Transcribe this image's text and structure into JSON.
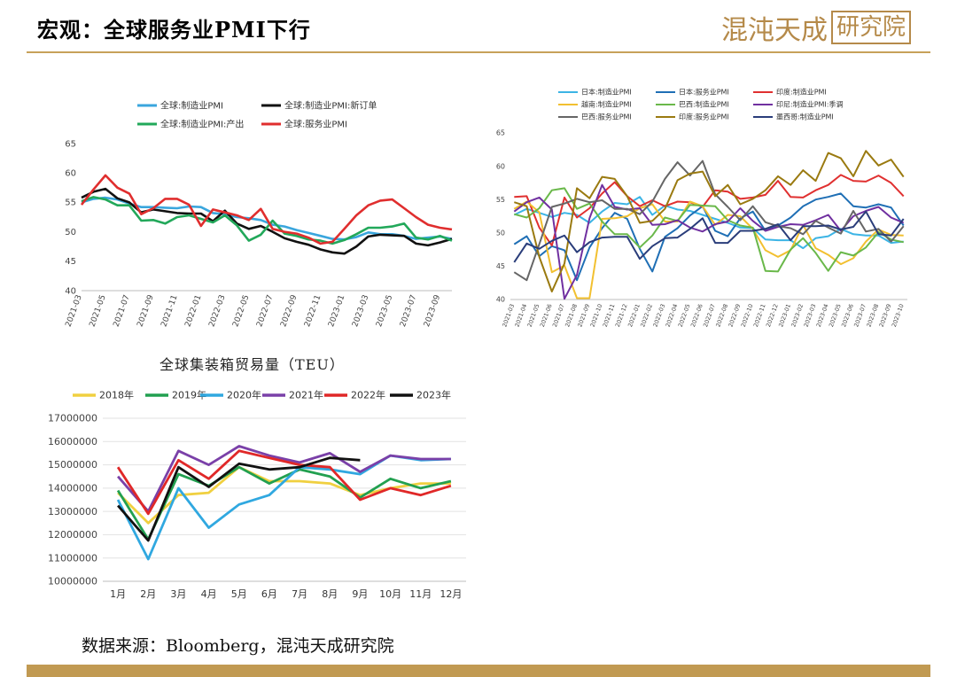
{
  "header": {
    "title": "宏观：全球服务业PMI下行",
    "brand_text": "混沌天成",
    "brand_box_text": "研究院"
  },
  "footer": {
    "source": "数据来源：Bloomberg，混沌天成研究院"
  },
  "chart_data": [
    {
      "type": "line",
      "title": "",
      "legend_position": "top",
      "ylim": [
        40,
        65
      ],
      "yticks": [
        40,
        45,
        50,
        55,
        60,
        65
      ],
      "x_labels": [
        "2021-03",
        "2021-05",
        "2021-07",
        "2021-09",
        "2021-11",
        "2022-01",
        "2022-03",
        "2022-05",
        "2022-07",
        "2022-09",
        "2022-11",
        "2023-01",
        "2023-03",
        "2023-05",
        "2023-07",
        "2023-09"
      ],
      "x_count": 32,
      "series": [
        {
          "name": "全球:制造业PMI",
          "color": "#3aa6dd",
          "values": [
            55.0,
            55.6,
            55.8,
            55.5,
            54.8,
            54.2,
            54.2,
            54.1,
            54.0,
            54.3,
            54.2,
            53.2,
            53.0,
            52.5,
            52.3,
            52.0,
            51.2,
            50.9,
            50.3,
            49.8,
            49.3,
            48.8,
            48.7,
            49.1,
            49.9,
            49.6,
            49.6,
            49.3,
            48.8,
            49.0,
            49.2,
            48.8
          ]
        },
        {
          "name": "全球:制造业PMI:新订单",
          "color": "#111111",
          "values": [
            55.8,
            56.8,
            57.3,
            55.7,
            55.0,
            53.3,
            53.8,
            53.5,
            53.2,
            53.1,
            53.1,
            51.8,
            53.6,
            51.4,
            50.5,
            51.0,
            50.0,
            48.9,
            48.3,
            47.8,
            47.0,
            46.5,
            46.3,
            47.5,
            49.2,
            49.5,
            49.4,
            49.3,
            48.0,
            47.7,
            48.2,
            48.8
          ]
        },
        {
          "name": "全球:制造业PMI:产出",
          "color": "#22a85a",
          "values": [
            55.2,
            55.9,
            55.5,
            54.5,
            54.5,
            51.9,
            52.0,
            51.4,
            52.5,
            52.8,
            52.2,
            51.6,
            52.8,
            51.1,
            48.5,
            49.5,
            51.9,
            49.7,
            49.3,
            48.7,
            48.5,
            48.0,
            48.6,
            49.6,
            50.7,
            50.7,
            50.9,
            51.4,
            49.0,
            48.7,
            49.3,
            48.5
          ]
        },
        {
          "name": "全球:服务业PMI",
          "color": "#e02e2e",
          "values": [
            54.6,
            57.2,
            59.6,
            57.5,
            56.5,
            53.0,
            54.0,
            55.6,
            55.6,
            54.6,
            51.0,
            53.8,
            53.3,
            52.8,
            52.0,
            53.9,
            50.5,
            50.0,
            49.7,
            49.0,
            48.0,
            48.3,
            50.5,
            52.8,
            54.5,
            55.3,
            55.5,
            54.0,
            52.5,
            51.2,
            50.7,
            50.4
          ]
        }
      ]
    },
    {
      "type": "line",
      "title": "",
      "legend_position": "top",
      "ylim": [
        40,
        65
      ],
      "yticks": [
        40,
        45,
        50,
        55,
        60,
        65
      ],
      "x_labels": [
        "2021-03",
        "2021-04",
        "2021-05",
        "2021-06",
        "2021-07",
        "2021-08",
        "2021-09",
        "2021-10",
        "2021-11",
        "2021-12",
        "2022-01",
        "2022-02",
        "2022-03",
        "2022-04",
        "2022-05",
        "2022-06",
        "2022-07",
        "2022-08",
        "2022-09",
        "2022-10",
        "2022-11",
        "2022-12",
        "2023-01",
        "2023-02",
        "2023-03",
        "2023-04",
        "2023-05",
        "2023-06",
        "2023-07",
        "2023-08",
        "2023-09",
        "2023-10"
      ],
      "series": [
        {
          "name": "日本:制造业PMI",
          "color": "#3cb4e5",
          "values": [
            52.7,
            53.6,
            53.0,
            52.4,
            53.0,
            52.7,
            51.5,
            53.2,
            54.5,
            54.3,
            55.4,
            52.7,
            54.1,
            53.5,
            53.3,
            52.7,
            52.1,
            51.5,
            50.8,
            50.7,
            49.0,
            48.9,
            48.9,
            47.7,
            49.2,
            49.5,
            50.6,
            49.8,
            49.6,
            49.6,
            48.5,
            48.7
          ]
        },
        {
          "name": "日本:服务业PMI",
          "color": "#1f6fb5",
          "values": [
            48.3,
            49.5,
            46.5,
            48.0,
            47.4,
            42.9,
            47.8,
            50.7,
            53.0,
            52.1,
            47.6,
            44.2,
            49.4,
            50.7,
            52.6,
            54.0,
            50.3,
            49.5,
            52.2,
            53.2,
            50.3,
            51.1,
            52.3,
            54.0,
            55.0,
            55.4,
            55.9,
            54.0,
            53.8,
            54.3,
            53.8,
            51.1
          ]
        },
        {
          "name": "印度:制造业PMI",
          "color": "#e03030",
          "values": [
            55.4,
            55.5,
            50.8,
            48.1,
            55.3,
            52.3,
            53.7,
            55.9,
            57.6,
            55.5,
            54.0,
            54.9,
            54.0,
            54.7,
            54.6,
            53.9,
            56.4,
            56.2,
            55.1,
            55.3,
            55.7,
            57.8,
            55.4,
            55.3,
            56.4,
            57.2,
            58.7,
            57.8,
            57.7,
            58.6,
            57.5,
            55.5
          ]
        },
        {
          "name": "越南:制造业PMI",
          "color": "#f2c030",
          "values": [
            53.6,
            54.7,
            53.1,
            44.1,
            45.1,
            40.2,
            40.2,
            52.1,
            52.2,
            52.5,
            53.7,
            54.3,
            51.7,
            51.7,
            54.7,
            54.0,
            51.2,
            52.7,
            52.5,
            50.6,
            47.4,
            46.4,
            47.4,
            51.2,
            47.7,
            46.7,
            45.3,
            46.2,
            48.7,
            50.5,
            49.7,
            49.6
          ]
        },
        {
          "name": "巴西:制造业PMI",
          "color": "#6ab84a",
          "values": [
            52.8,
            52.3,
            53.7,
            56.4,
            56.7,
            53.6,
            54.4,
            51.7,
            49.8,
            49.8,
            47.8,
            49.6,
            52.3,
            51.8,
            54.2,
            54.1,
            54.0,
            51.9,
            51.1,
            50.8,
            44.3,
            44.2,
            47.5,
            49.2,
            47.0,
            44.3,
            47.1,
            46.6,
            47.8,
            50.1,
            49.0,
            48.6
          ]
        },
        {
          "name": "印尼:制造业PMI:季调",
          "color": "#7030a0",
          "values": [
            53.2,
            54.6,
            55.3,
            53.5,
            40.1,
            43.7,
            52.2,
            57.2,
            53.9,
            53.5,
            53.7,
            51.2,
            51.3,
            51.9,
            50.8,
            50.2,
            51.3,
            51.7,
            53.7,
            51.8,
            50.3,
            50.9,
            51.3,
            51.2,
            51.9,
            52.7,
            50.3,
            52.5,
            53.3,
            53.9,
            52.3,
            51.5
          ]
        },
        {
          "name": "巴西:服务业PMI",
          "color": "#666666",
          "values": [
            44.1,
            42.9,
            48.3,
            53.9,
            54.4,
            55.1,
            54.6,
            54.9,
            53.6,
            53.6,
            52.8,
            54.7,
            58.1,
            60.6,
            58.6,
            60.8,
            55.8,
            53.9,
            51.9,
            54.0,
            51.6,
            51.0,
            50.7,
            49.8,
            51.8,
            50.8,
            49.9,
            53.3,
            50.2,
            50.6,
            48.7,
            51.0
          ]
        },
        {
          "name": "印度:服务业PMI",
          "color": "#9a7a10",
          "values": [
            54.6,
            54.0,
            46.4,
            41.2,
            45.4,
            56.7,
            55.2,
            58.4,
            58.1,
            55.5,
            51.5,
            51.8,
            53.6,
            57.9,
            58.9,
            59.2,
            55.5,
            57.2,
            54.3,
            55.1,
            56.4,
            58.5,
            57.2,
            59.4,
            57.8,
            62.0,
            61.2,
            58.5,
            62.3,
            60.1,
            61.0,
            58.4
          ]
        },
        {
          "name": "墨西哥:制造业PMI",
          "color": "#2a3d7a",
          "values": [
            45.6,
            48.4,
            47.6,
            48.8,
            49.6,
            47.1,
            48.6,
            49.3,
            49.4,
            49.4,
            46.1,
            48.0,
            49.2,
            49.3,
            50.6,
            52.2,
            48.5,
            48.5,
            50.3,
            50.3,
            50.6,
            51.3,
            48.9,
            51.0,
            51.0,
            51.1,
            50.5,
            50.9,
            53.2,
            49.8,
            49.6,
            52.1
          ]
        }
      ]
    },
    {
      "type": "line",
      "title": "全球集装箱贸易量（TEU）",
      "legend_position": "top",
      "ylim": [
        10000000,
        17000000
      ],
      "yticks": [
        "10000000",
        "11000000",
        "12000000",
        "13000000",
        "14000000",
        "15000000",
        "16000000",
        "17000000"
      ],
      "categories": [
        "1月",
        "2月",
        "3月",
        "4月",
        "5月",
        "6月",
        "7月",
        "8月",
        "9月",
        "10月",
        "11月",
        "12月"
      ],
      "series": [
        {
          "name": "2018年",
          "color": "#f0d040",
          "values": [
            13800000,
            12500000,
            13700000,
            13800000,
            14900000,
            14300000,
            14300000,
            14200000,
            13700000,
            14000000,
            14200000,
            14200000
          ]
        },
        {
          "name": "2019年",
          "color": "#22a050",
          "values": [
            13900000,
            11800000,
            14600000,
            14100000,
            14900000,
            14200000,
            14800000,
            14500000,
            13600000,
            14400000,
            14000000,
            14300000
          ]
        },
        {
          "name": "2020年",
          "color": "#30a8e0",
          "values": [
            13500000,
            10950000,
            14000000,
            12300000,
            13300000,
            13700000,
            14900000,
            14800000,
            14600000,
            15400000,
            15200000,
            15250000
          ]
        },
        {
          "name": "2021年",
          "color": "#7a40a8",
          "values": [
            14500000,
            13000000,
            15600000,
            15000000,
            15800000,
            15400000,
            15100000,
            15500000,
            14700000,
            15400000,
            15250000,
            15250000
          ]
        },
        {
          "name": "2022年",
          "color": "#e02828",
          "values": [
            14900000,
            12900000,
            15200000,
            14400000,
            15600000,
            15300000,
            15000000,
            14900000,
            13500000,
            14000000,
            13700000,
            14100000
          ]
        },
        {
          "name": "2023年",
          "color": "#111111",
          "values": [
            13250000,
            11750000,
            14900000,
            14050000,
            15050000,
            14800000,
            14900000,
            15300000,
            15200000,
            null,
            null,
            null
          ]
        }
      ]
    }
  ]
}
